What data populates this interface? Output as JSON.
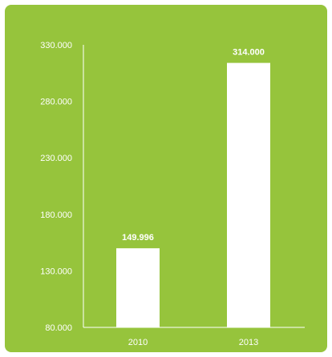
{
  "chart_data": {
    "type": "bar",
    "categories": [
      "2010",
      "2013"
    ],
    "values": [
      149996,
      314000
    ],
    "data_labels": [
      "149.996",
      "314.000"
    ],
    "ylim": [
      80000,
      330000
    ],
    "yticks": [
      80000,
      130000,
      180000,
      230000,
      280000,
      330000
    ],
    "ytick_labels": [
      "80.000",
      "130.000",
      "180.000",
      "230.000",
      "280.000",
      "330.000"
    ],
    "grid": false,
    "title": "",
    "xlabel": "",
    "ylabel": ""
  },
  "colors": {
    "background": "#96c43c",
    "bar": "#ffffff",
    "axis": "#ffffff",
    "text": "#ffffff"
  }
}
